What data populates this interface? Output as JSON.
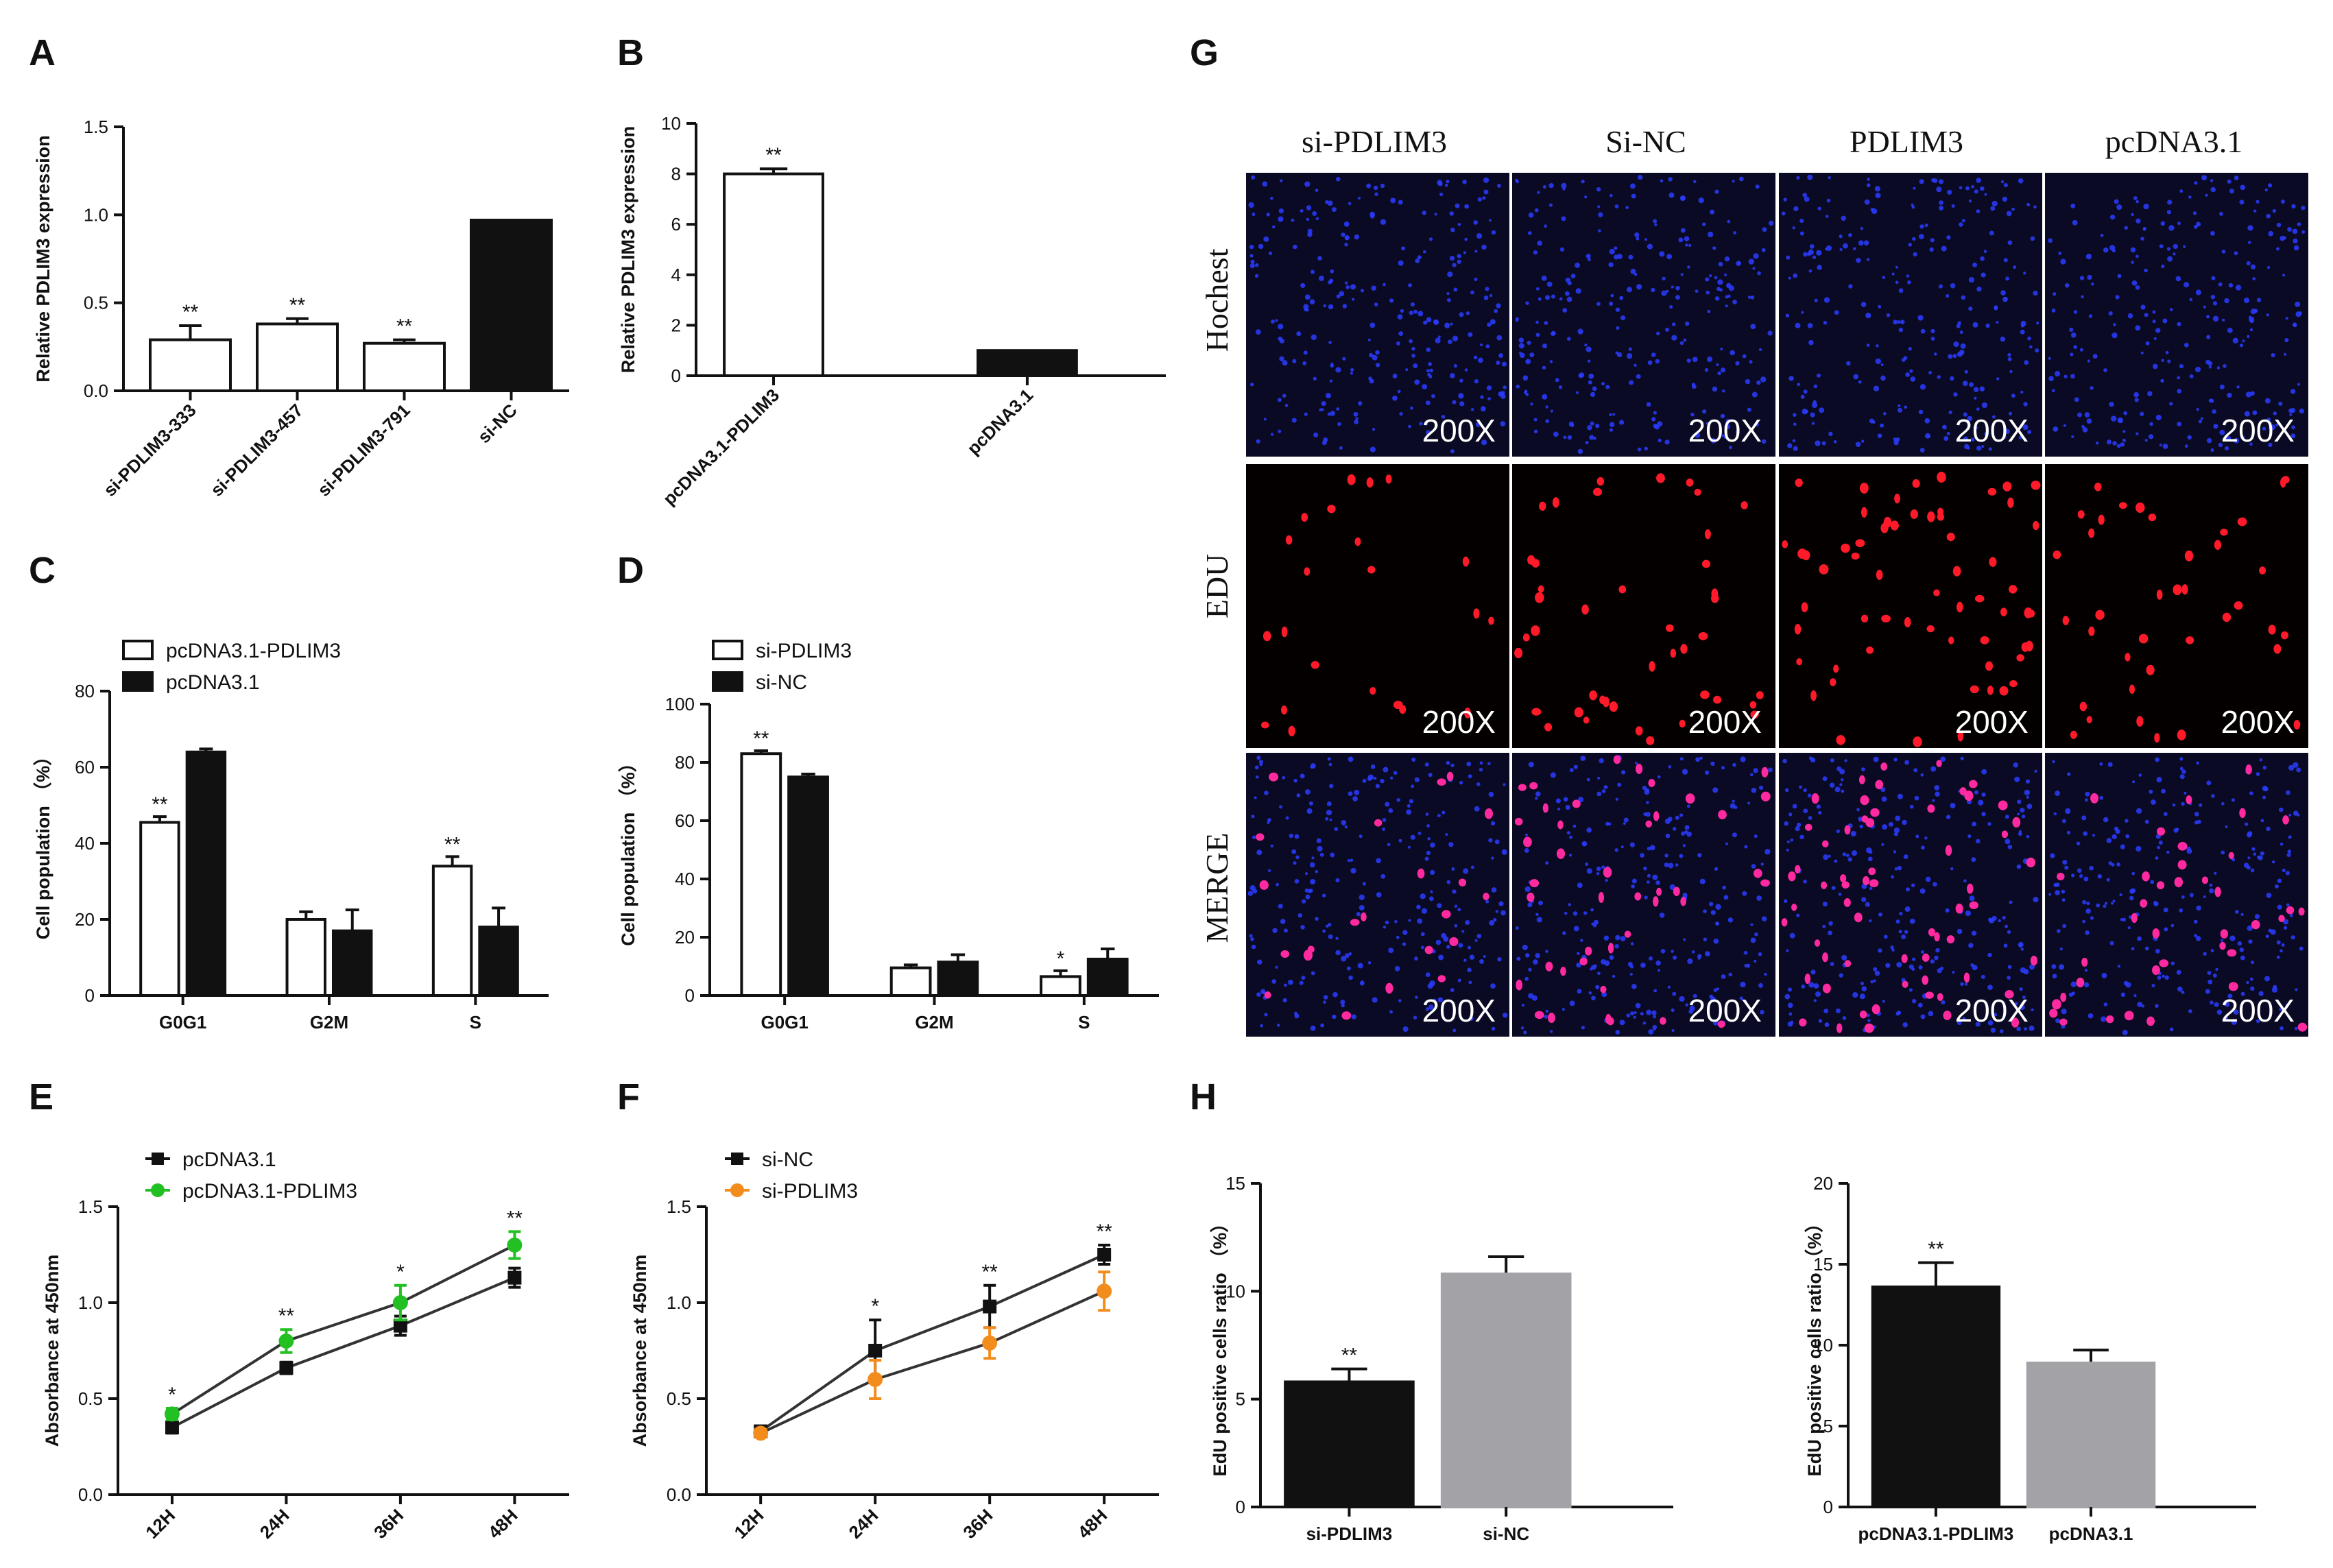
{
  "panel_letters": [
    "A",
    "B",
    "C",
    "D",
    "E",
    "F",
    "G",
    "H"
  ],
  "colors": {
    "white": "#ffffff",
    "black": "#111111",
    "green": "#22c022",
    "orange": "#f28c1c",
    "gray": "#a3a2a7",
    "hochest_bg": "#0a0a24",
    "edu_bg": "#050000",
    "hochest_dot": "#2a3cff",
    "edu_dot": "#ff1a2a",
    "merge_dot": "#ff2aa0"
  },
  "chart_data": [
    {
      "id": "A",
      "type": "bar",
      "ylabel": "Relative PDLIM3 expression",
      "ylim": [
        0,
        1.5
      ],
      "yticks": [
        "0.0",
        "0.5",
        "1.0",
        "1.5"
      ],
      "categories": [
        "si-PDLIM3-333",
        "si-PDLIM3-457",
        "si-PDLIM3-791",
        "si-NC"
      ],
      "values": [
        0.29,
        0.38,
        0.27,
        0.97
      ],
      "errors": [
        0.08,
        0.03,
        0.02,
        0.0
      ],
      "fills": [
        "white",
        "white",
        "white",
        "black"
      ],
      "annotations": [
        "**",
        "**",
        "**",
        ""
      ]
    },
    {
      "id": "B",
      "type": "bar",
      "ylabel": "Relative PDLIM3 expression",
      "ylim": [
        0,
        10
      ],
      "yticks": [
        "0",
        "2",
        "4",
        "6",
        "8",
        "10"
      ],
      "categories": [
        "pcDNA3.1-PDLIM3",
        "pcDNA3.1"
      ],
      "values": [
        8.0,
        1.0
      ],
      "errors": [
        0.2,
        0.0
      ],
      "fills": [
        "white",
        "black"
      ],
      "annotations": [
        "**",
        ""
      ]
    },
    {
      "id": "C",
      "type": "bar",
      "ylabel": "Cell population （%）",
      "ylim": [
        0,
        80
      ],
      "yticks": [
        "0",
        "20",
        "40",
        "60",
        "80"
      ],
      "categories": [
        "G0G1",
        "G2M",
        "S"
      ],
      "series": [
        {
          "name": "pcDNA3.1-PDLIM3",
          "fill": "white",
          "values": [
            45.5,
            20.0,
            34.0
          ],
          "errors": [
            1.5,
            2.0,
            2.5
          ],
          "annotations": [
            "**",
            "",
            "**"
          ]
        },
        {
          "name": "pcDNA3.1",
          "fill": "black",
          "values": [
            64.0,
            17.0,
            18.0
          ],
          "errors": [
            0.8,
            5.5,
            5.0
          ],
          "annotations": [
            "",
            "",
            ""
          ]
        }
      ]
    },
    {
      "id": "D",
      "type": "bar",
      "ylabel": "Cell population （%）",
      "ylim": [
        0,
        100
      ],
      "yticks": [
        "0",
        "20",
        "40",
        "60",
        "80",
        "100"
      ],
      "categories": [
        "G0G1",
        "G2M",
        "S"
      ],
      "series": [
        {
          "name": "si-PDLIM3",
          "fill": "white",
          "values": [
            83.0,
            9.5,
            6.5
          ],
          "errors": [
            1.0,
            1.0,
            2.0
          ],
          "annotations": [
            "**",
            "",
            "*"
          ]
        },
        {
          "name": "si-NC",
          "fill": "black",
          "values": [
            75.0,
            11.5,
            12.5
          ],
          "errors": [
            1.0,
            2.5,
            3.5
          ],
          "annotations": [
            "",
            "",
            ""
          ]
        }
      ]
    },
    {
      "id": "E",
      "type": "line",
      "ylabel": "Absorbance at 450nm",
      "ylim": [
        0,
        1.5
      ],
      "yticks": [
        "0.0",
        "0.5",
        "1.0",
        "1.5"
      ],
      "categories": [
        "12H",
        "24H",
        "36H",
        "48H"
      ],
      "annotations": [
        "*",
        "**",
        "*",
        "**"
      ],
      "series": [
        {
          "name": "pcDNA3.1",
          "color": "black",
          "values": [
            0.35,
            0.66,
            0.88,
            1.13
          ],
          "errors": [
            0.03,
            0.03,
            0.05,
            0.05
          ]
        },
        {
          "name": "pcDNA3.1-PDLIM3",
          "color": "green",
          "values": [
            0.42,
            0.8,
            1.0,
            1.3
          ],
          "errors": [
            0.03,
            0.06,
            0.09,
            0.07
          ]
        }
      ]
    },
    {
      "id": "F",
      "type": "line",
      "ylabel": "Absorbance at 450nm",
      "ylim": [
        0,
        1.5
      ],
      "yticks": [
        "0.0",
        "0.5",
        "1.0",
        "1.5"
      ],
      "categories": [
        "12H",
        "24H",
        "36H",
        "48H"
      ],
      "annotations": [
        "",
        "*",
        "**",
        "**"
      ],
      "series": [
        {
          "name": "si-NC",
          "color": "black",
          "values": [
            0.33,
            0.75,
            0.98,
            1.25
          ],
          "errors": [
            0.02,
            0.16,
            0.11,
            0.05
          ]
        },
        {
          "name": "si-PDLIM3",
          "color": "orange",
          "values": [
            0.32,
            0.6,
            0.79,
            1.06
          ],
          "errors": [
            0.02,
            0.1,
            0.08,
            0.1
          ]
        }
      ]
    },
    {
      "id": "H1",
      "type": "bar",
      "ylabel": "EdU positive cells ratio （%）",
      "ylim": [
        0,
        15
      ],
      "yticks": [
        "0",
        "5",
        "10",
        "15"
      ],
      "categories": [
        "si-PDLIM3",
        "si-NC"
      ],
      "values": [
        5.8,
        10.8
      ],
      "errors": [
        0.6,
        0.8
      ],
      "fills": [
        "black",
        "gray"
      ],
      "annotations": [
        "**",
        ""
      ]
    },
    {
      "id": "H2",
      "type": "bar",
      "ylabel": "EdU positive cells ratio （%）",
      "ylim": [
        0,
        20
      ],
      "yticks": [
        "0",
        "5",
        "10",
        "15",
        "20"
      ],
      "categories": [
        "pcDNA3.1-PDLIM3",
        "pcDNA3.1"
      ],
      "values": [
        13.6,
        8.9
      ],
      "errors": [
        1.5,
        0.8
      ],
      "fills": [
        "black",
        "gray"
      ],
      "annotations": [
        "**",
        ""
      ]
    }
  ],
  "image_grid": {
    "columns": [
      "si-PDLIM3",
      "Si-NC",
      "PDLIM3",
      "pcDNA3.1"
    ],
    "rows": [
      "Hochest",
      "EDU",
      "MERGE"
    ],
    "magnification": "200X"
  }
}
